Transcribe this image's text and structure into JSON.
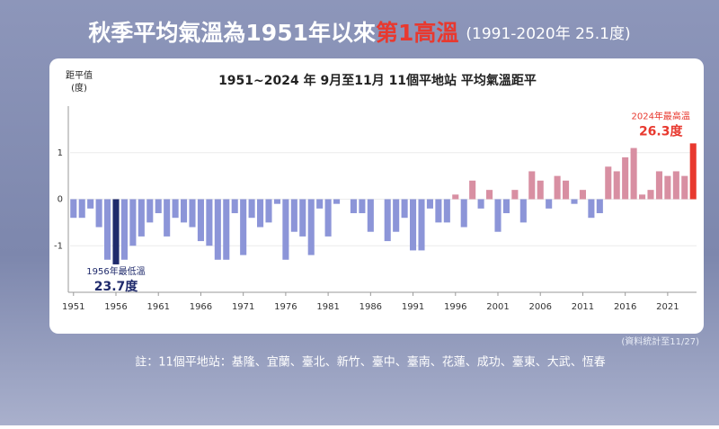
{
  "header": {
    "title_parts": [
      "秋季平均氣溫為1951年以來",
      "第1高溫"
    ],
    "title_note": "(1991-2020年 25.1度)",
    "title_colors": [
      "#ffffff",
      "#e8392f"
    ]
  },
  "chart_data": {
    "type": "bar",
    "title": "1951~2024 年  9月至11月 11個平地站 平均氣溫距平",
    "y_label_lines": [
      "距平值",
      "(度)"
    ],
    "x": [
      1951,
      1952,
      1953,
      1954,
      1955,
      1956,
      1957,
      1958,
      1959,
      1960,
      1961,
      1962,
      1963,
      1964,
      1965,
      1966,
      1967,
      1968,
      1969,
      1970,
      1971,
      1972,
      1973,
      1974,
      1975,
      1976,
      1977,
      1978,
      1979,
      1980,
      1981,
      1982,
      1983,
      1984,
      1985,
      1986,
      1987,
      1988,
      1989,
      1990,
      1991,
      1992,
      1993,
      1994,
      1995,
      1996,
      1997,
      1998,
      1999,
      2000,
      2001,
      2002,
      2003,
      2004,
      2005,
      2006,
      2007,
      2008,
      2009,
      2010,
      2011,
      2012,
      2013,
      2014,
      2015,
      2016,
      2017,
      2018,
      2019,
      2020,
      2021,
      2022,
      2023,
      2024
    ],
    "values": [
      -0.4,
      -0.4,
      -0.2,
      -0.6,
      -1.3,
      -1.4,
      -1.3,
      -1.0,
      -0.8,
      -0.5,
      -0.3,
      -0.8,
      -0.4,
      -0.5,
      -0.6,
      -0.9,
      -1.0,
      -1.3,
      -1.3,
      -0.3,
      -1.2,
      -0.4,
      -0.6,
      -0.5,
      -0.1,
      -1.3,
      -0.7,
      -0.8,
      -1.2,
      -0.2,
      -0.8,
      -0.1,
      0,
      -0.3,
      -0.3,
      -0.7,
      0,
      -0.9,
      -0.7,
      -0.4,
      -1.1,
      -1.1,
      -0.2,
      -0.5,
      -0.5,
      0.1,
      -0.6,
      0.4,
      -0.2,
      0.2,
      -0.7,
      -0.3,
      0.2,
      -0.5,
      0.6,
      0.4,
      -0.2,
      0.5,
      0.4,
      -0.1,
      0.2,
      -0.4,
      -0.3,
      0.7,
      0.6,
      0.9,
      1.1,
      0.1,
      0.2,
      0.6,
      0.5,
      0.6,
      0.5,
      1.2
    ],
    "negative_color": "#8c95d8",
    "positive_color": "#d88fa2",
    "highlights": [
      {
        "x": 1956,
        "label": "1956年最低溫",
        "value_label": "23.7度",
        "color": "#1f2a6b"
      },
      {
        "x": 2024,
        "label": "2024年最高溫",
        "value_label": "26.3度",
        "color": "#e8392f"
      }
    ],
    "xlim": [
      1950.6,
      2024.4
    ],
    "xticks": [
      1951,
      1956,
      1961,
      1966,
      1971,
      1976,
      1981,
      1986,
      1991,
      1996,
      2001,
      2006,
      2011,
      2016,
      2021
    ],
    "ylim": [
      -2,
      2
    ],
    "yticks": [
      1,
      0,
      -1
    ],
    "grid": true,
    "source_note": "(資料統計至11/27)"
  },
  "footer": "註：11個平地站：基隆、宜蘭、臺北、新竹、臺中、臺南、花蓮、成功、臺東、大武、恆春"
}
